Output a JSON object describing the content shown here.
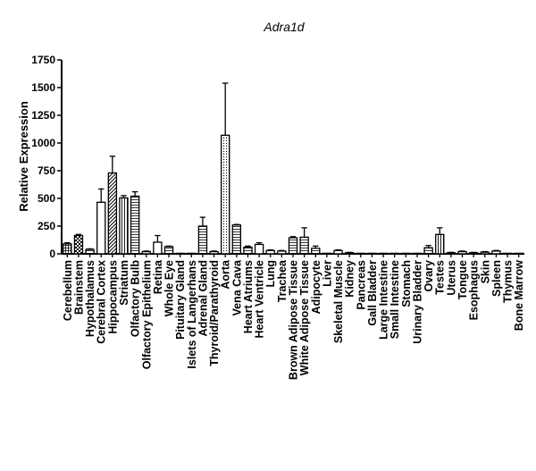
{
  "chart_data": {
    "type": "bar",
    "title": "Adra1d",
    "xlabel": "",
    "ylabel": "Relative Expression",
    "ylim": [
      0,
      1750
    ],
    "yticks": [
      0,
      250,
      500,
      750,
      1000,
      1250,
      1500,
      1750
    ],
    "grid": false,
    "legend": "none",
    "error_bars": "upper",
    "categories": [
      "Cerebellum",
      "Brainstem",
      "Hypothalamus",
      "Cerebral Cortex",
      "Hippocampus",
      "Striatum",
      "Olfactory Bulb",
      "Olfactory Epithelium",
      "Retina",
      "Whole Eye",
      "Pituitary Gland",
      "Islets of Langerhans",
      "Adrenal Gland",
      "Thyroid/Parathyroid",
      "Aorta",
      "Vena Cava",
      "Heart Atriums",
      "Heart Ventricle",
      "Lung",
      "Trachea",
      "Brown Adipose Tissue",
      "White Adipose Tissue",
      "Adipocyte",
      "Liver",
      "Skeletal Muscle",
      "Kidney",
      "Pancreas",
      "Gall Bladder",
      "Large Intestine",
      "Small Intestine",
      "Stomach",
      "Urinary Bladder",
      "Ovary",
      "Testes",
      "Uterus",
      "Tongue",
      "Esophagus",
      "Skin",
      "Spleen",
      "Thymus",
      "Bone Marrow"
    ],
    "values": [
      90,
      165,
      40,
      465,
      730,
      505,
      520,
      20,
      105,
      65,
      5,
      5,
      250,
      20,
      1070,
      260,
      60,
      85,
      30,
      25,
      145,
      150,
      50,
      5,
      30,
      10,
      5,
      5,
      5,
      5,
      5,
      5,
      55,
      175,
      10,
      20,
      10,
      15,
      25,
      5,
      5
    ],
    "errors": [
      10,
      10,
      5,
      120,
      150,
      20,
      40,
      5,
      60,
      5,
      0,
      0,
      80,
      5,
      470,
      5,
      10,
      15,
      5,
      5,
      10,
      85,
      20,
      0,
      5,
      3,
      0,
      0,
      0,
      0,
      0,
      0,
      20,
      60,
      3,
      5,
      3,
      5,
      5,
      0,
      0
    ],
    "patterns": [
      "cross",
      "checker",
      "hline",
      "plain",
      "diag",
      "vline",
      "hline",
      "plain",
      "plain",
      "hline",
      "plain",
      "plain",
      "hline",
      "plain",
      "dots",
      "hline",
      "hline",
      "plain",
      "plain",
      "plain",
      "hline",
      "hline",
      "hline",
      "plain",
      "plain",
      "plain",
      "plain",
      "plain",
      "plain",
      "plain",
      "plain",
      "plain",
      "hline",
      "vline",
      "plain",
      "plain",
      "plain",
      "plain",
      "plain",
      "plain",
      "plain"
    ],
    "colors": {
      "stroke": "#000000",
      "fill": "#ffffff"
    }
  }
}
